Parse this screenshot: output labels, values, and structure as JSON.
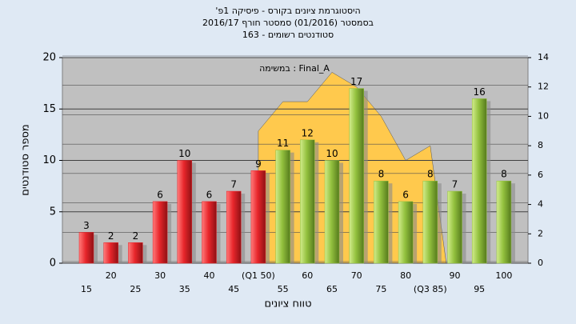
{
  "chart_data": {
    "type": "bar",
    "title": "'היסטוגרמת ציונים בקורס - פיסיקה 1פ",
    "subtitle": [
      "בסמסטר  (01/2016)  סמסטר חורף  2016/17",
      "סטודנטים רשומים - 163"
    ],
    "annotation": "במשימה : Final_A",
    "xlabel": "טווח ציונים",
    "ylabel": "מספר סטודנטים",
    "categories": [
      "15",
      "20",
      "25",
      "30",
      "35",
      "40",
      "45",
      "(Q1 50)",
      "55",
      "60",
      "65",
      "70",
      "75",
      "80",
      "(Q3 85)",
      "90",
      "95",
      "100"
    ],
    "series": [
      {
        "type": "bar",
        "colors": [
          "#e8262b",
          "#e8262b",
          "#e8262b",
          "#e8262b",
          "#e8262b",
          "#e8262b",
          "#e8262b",
          "#e8262b",
          "#93c13e",
          "#93c13e",
          "#93c13e",
          "#93c13e",
          "#93c13e",
          "#93c13e",
          "#93c13e",
          "#93c13e",
          "#93c13e",
          "#93c13e"
        ],
        "values": [
          3,
          2,
          2,
          6,
          10,
          6,
          7,
          9,
          11,
          12,
          10,
          17,
          8,
          6,
          8,
          7,
          16,
          8
        ]
      },
      {
        "type": "area",
        "axis": "y2",
        "color": "#ffc94d",
        "values": [
          null,
          null,
          null,
          null,
          null,
          null,
          null,
          9,
          11,
          11,
          13,
          12,
          10,
          7,
          8,
          null,
          null,
          null
        ]
      }
    ],
    "ylim": [
      0,
      20
    ],
    "yticks": [
      0,
      5,
      10,
      15,
      20
    ],
    "y2lim": [
      0,
      14
    ],
    "y2ticks": [
      0,
      2,
      4,
      6,
      8,
      10,
      12,
      14
    ],
    "grid": true
  }
}
